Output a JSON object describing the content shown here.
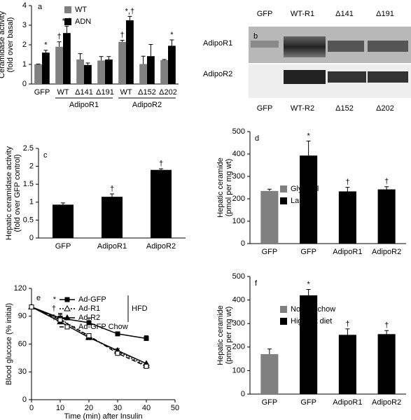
{
  "chart_data": [
    {
      "type": "bar",
      "label": "a",
      "ylabel": [
        "Ceramidase activity",
        "(fold over basal)"
      ],
      "categories": [
        "GFP",
        "WT",
        "Δ141",
        "Δ191",
        "WT",
        "Δ152",
        "Δ202"
      ],
      "group_of": [
        null,
        "AdipoR1",
        "AdipoR1",
        "AdipoR1",
        "AdipoR2",
        "AdipoR2",
        "AdipoR2"
      ],
      "series": [
        {
          "name": "WT",
          "color": "#808080",
          "values": [
            1.0,
            1.9,
            1.25,
            1.2,
            2.15,
            1.02,
            1.22
          ],
          "errors": [
            0.02,
            0.25,
            0.3,
            0.2,
            0.08,
            0.4,
            0.03
          ],
          "markers": [
            null,
            "†",
            null,
            null,
            "†",
            null,
            null
          ]
        },
        {
          "name": "ADN",
          "color": "#000000",
          "values": [
            1.6,
            2.6,
            0.97,
            1.25,
            3.25,
            1.42,
            1.95
          ],
          "errors": [
            0.12,
            0.35,
            0.1,
            0.15,
            0.2,
            0.6,
            0.3
          ],
          "markers": [
            "*",
            "*,†",
            null,
            null,
            "*,†",
            null,
            "*"
          ]
        }
      ],
      "ylim": [
        0,
        4
      ],
      "yticks": [
        0,
        1,
        2,
        3,
        4
      ]
    },
    {
      "type": "bar",
      "label": "c",
      "ylabel": [
        "Hepatic ceramidase activity",
        "(fold over GFP control)"
      ],
      "categories": [
        "GFP",
        "AdipoR1",
        "AdipoR2"
      ],
      "series": [
        {
          "color": "#000000",
          "values": [
            0.93,
            1.15,
            1.9
          ],
          "errors": [
            0.05,
            0.08,
            0.03
          ],
          "markers": [
            null,
            "†",
            "†"
          ]
        }
      ],
      "ylim": [
        0,
        2.5
      ],
      "yticks": [
        0,
        0.5,
        1,
        1.5,
        2,
        2.5
      ]
    },
    {
      "type": "bar",
      "label": "d",
      "ylabel": [
        "Hepatic ceramide",
        "(pmol per mg wt)"
      ],
      "categories": [
        "GFP",
        "GFP",
        "AdipoR1",
        "AdipoR2"
      ],
      "series": [
        {
          "name": "Glycerol",
          "color": "#808080",
          "values": [
            235,
            null,
            null,
            null
          ],
          "errors": [
            8,
            null,
            null,
            null
          ],
          "markers": [
            null,
            null,
            null,
            null
          ]
        },
        {
          "name": "Lard oil",
          "color": "#000000",
          "values": [
            null,
            393,
            233,
            242
          ],
          "errors": [
            null,
            65,
            18,
            12
          ],
          "markers": [
            null,
            "*",
            "†",
            "†"
          ]
        }
      ],
      "ylim": [
        0,
        500
      ],
      "yticks": [
        0,
        100,
        200,
        300,
        400,
        500
      ]
    },
    {
      "type": "line",
      "label": "e",
      "xlabel": "Time (min) after Insulin",
      "ylabel": [
        "Blood glucose (% initial)"
      ],
      "x": [
        0,
        10,
        20,
        30,
        40
      ],
      "bracket_label": "HFD",
      "series": [
        {
          "name": "Ad-GFP",
          "legend_prefix": "*",
          "color": "#000000",
          "marker": "square",
          "filled": true,
          "dash": "none",
          "values": [
            100,
            88,
            83,
            71,
            66
          ],
          "errors": [
            0,
            5,
            5,
            2,
            3
          ]
        },
        {
          "name": "Ad-R1",
          "legend_prefix": "†",
          "color": "#000000",
          "marker": "triangle",
          "filled": false,
          "dash": "2,2",
          "values": [
            100,
            87,
            68,
            52,
            37
          ],
          "errors": [
            0,
            5,
            3,
            3,
            2
          ]
        },
        {
          "name": "Ad-R2",
          "legend_prefix": "†",
          "color": "#000000",
          "marker": "triangle",
          "filled": true,
          "dash": "none",
          "values": [
            100,
            84,
            67,
            53,
            39
          ]
        },
        {
          "name": "Ad-GFP Chow",
          "color": "#000000",
          "marker": "square",
          "filled": false,
          "dash": "6,3",
          "values": [
            100,
            86,
            69,
            50,
            36
          ]
        }
      ],
      "xlim": [
        0,
        50
      ],
      "xticks": [
        0,
        10,
        20,
        30,
        40,
        50
      ],
      "ylim": [
        0,
        120
      ],
      "yticks": [
        0,
        30,
        60,
        90,
        120
      ]
    },
    {
      "type": "bar",
      "label": "f",
      "ylabel": [
        "Hepatic ceramide",
        "(pmol per mg wt)"
      ],
      "categories": [
        "GFP",
        "GFP",
        "AdipoR1",
        "AdipoR2"
      ],
      "series": [
        {
          "name": "Normal chow",
          "color": "#808080",
          "values": [
            170,
            null,
            null,
            null
          ],
          "errors": [
            22,
            null,
            null,
            null
          ],
          "markers": [
            null,
            null,
            null,
            null
          ]
        },
        {
          "name": "High-fat diet",
          "color": "#000000",
          "values": [
            null,
            420,
            252,
            255
          ],
          "errors": [
            null,
            25,
            25,
            15
          ],
          "markers": [
            null,
            "*",
            "†",
            "†"
          ]
        }
      ],
      "ylim": [
        0,
        500
      ],
      "yticks": [
        0,
        100,
        200,
        300,
        400,
        500
      ]
    }
  ],
  "blot": {
    "label": "b",
    "top_labels": [
      "GFP",
      "WT-R1",
      "Δ141",
      "Δ191"
    ],
    "bottom_labels": [
      "GFP",
      "WT-R2",
      "Δ152",
      "Δ202"
    ],
    "rows": [
      "AdipoR1",
      "AdipoR2"
    ]
  }
}
